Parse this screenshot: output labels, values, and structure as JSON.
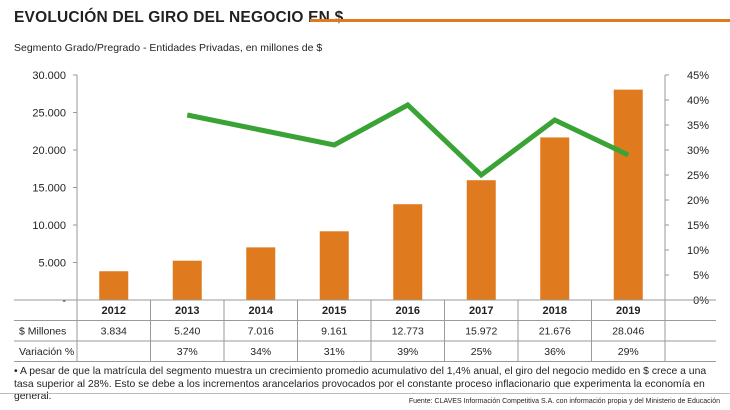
{
  "header": {
    "title": "EVOLUCIÓN DEL GIRO DEL NEGOCIO EN $",
    "subtitle": "Segmento Grado/Pregrado - Entidades Privadas, en millones de $"
  },
  "colors": {
    "bar": "#e07a1f",
    "line": "#3aa335",
    "accent": "#e07a1f",
    "grid": "#9a9a9a"
  },
  "chart_data": {
    "type": "bar",
    "categories": [
      "2012",
      "2013",
      "2014",
      "2015",
      "2016",
      "2017",
      "2018",
      "2019"
    ],
    "series": [
      {
        "name": "$ Millones",
        "type": "bar",
        "axis": "left",
        "values": [
          3834,
          5240,
          7016,
          9161,
          12773,
          15972,
          21676,
          28046
        ]
      },
      {
        "name": "Variación %",
        "type": "line",
        "axis": "right",
        "values": [
          null,
          37,
          34,
          31,
          39,
          25,
          36,
          29
        ]
      }
    ],
    "ylim": [
      0,
      30000
    ],
    "y_ticks": [
      "30.000",
      "25.000",
      "20.000",
      "15.000",
      "10.000",
      "5.000",
      "-"
    ],
    "y_tick_values": [
      30000,
      25000,
      20000,
      15000,
      10000,
      5000,
      0
    ],
    "y2lim": [
      0,
      45
    ],
    "y2_ticks": [
      "45%",
      "40%",
      "35%",
      "30%",
      "25%",
      "20%",
      "15%",
      "10%",
      "5%",
      "0%"
    ],
    "y2_tick_values": [
      45,
      40,
      35,
      30,
      25,
      20,
      15,
      10,
      5,
      0
    ],
    "grid": false,
    "table": {
      "row_labels": [
        "$ Millones",
        "Variación %"
      ],
      "rows": [
        [
          "3.834",
          "5.240",
          "7.016",
          "9.161",
          "12.773",
          "15.972",
          "21.676",
          "28.046"
        ],
        [
          "",
          "37%",
          "34%",
          "31%",
          "39%",
          "25%",
          "36%",
          "29%"
        ]
      ]
    }
  },
  "footer": {
    "note": "• A pesar de que la matrícula del segmento muestra un crecimiento promedio acumulativo del 1,4% anual, el giro del negocio medido en $ crece a una tasa superior al 28%. Esto se debe a los incrementos arancelarios provocados por el constante proceso inflacionario que experimenta la economía en general.",
    "source": "Fuente: CLAVES Información Competitiva S.A. con información propia y del Ministerio de Educación"
  }
}
